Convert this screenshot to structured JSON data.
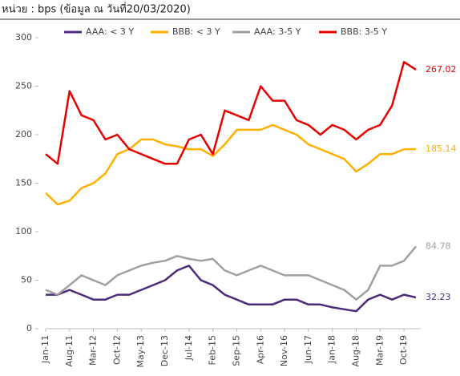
{
  "chart_data": {
    "type": "line",
    "title": "หน่วย : bps (ข้อมูล ณ วันที่20/03/2020)",
    "categories": [
      "Jan-11",
      null,
      "Aug-11",
      null,
      "Mar-12",
      null,
      "Oct-12",
      null,
      "May-13",
      null,
      "Dec-13",
      null,
      "Jul-14",
      null,
      "Feb-15",
      null,
      "Sep-15",
      null,
      "Apr-16",
      null,
      "Nov-16",
      null,
      "Jun-17",
      null,
      "Jan-18",
      null,
      "Aug-18",
      null,
      "Mar-19",
      null,
      "Oct-19",
      null
    ],
    "series": [
      {
        "name": "AAA: < 3 Y",
        "color": "#4b2a7a",
        "values": [
          35,
          35,
          40,
          35,
          30,
          30,
          35,
          35,
          40,
          45,
          50,
          60,
          65,
          50,
          45,
          35,
          30,
          25,
          25,
          25,
          30,
          30,
          25,
          25,
          22,
          20,
          18,
          30,
          35,
          30,
          35,
          32.23
        ]
      },
      {
        "name": "BBB: < 3 Y",
        "color": "#ffb000",
        "values": [
          140,
          128,
          132,
          145,
          150,
          160,
          180,
          185,
          195,
          195,
          190,
          188,
          185,
          185,
          178,
          190,
          205,
          205,
          205,
          210,
          205,
          200,
          190,
          185,
          180,
          175,
          162,
          170,
          180,
          180,
          185,
          185.14
        ]
      },
      {
        "name": "AAA: 3-5 Y",
        "color": "#a0a0a0",
        "values": [
          40,
          35,
          45,
          55,
          50,
          45,
          55,
          60,
          65,
          68,
          70,
          75,
          72,
          70,
          72,
          60,
          55,
          60,
          65,
          60,
          55,
          55,
          55,
          50,
          45,
          40,
          30,
          40,
          65,
          65,
          70,
          84.78
        ]
      },
      {
        "name": "BBB: 3-5 Y",
        "color": "#e60000",
        "values": [
          180,
          170,
          245,
          220,
          215,
          195,
          200,
          185,
          180,
          175,
          170,
          170,
          195,
          200,
          180,
          225,
          220,
          215,
          250,
          235,
          235,
          215,
          210,
          200,
          210,
          205,
          195,
          205,
          210,
          230,
          275,
          267.02
        ]
      }
    ],
    "ylim": [
      0,
      300
    ],
    "yticks": [
      0,
      50,
      100,
      150,
      200,
      250,
      300
    ]
  }
}
